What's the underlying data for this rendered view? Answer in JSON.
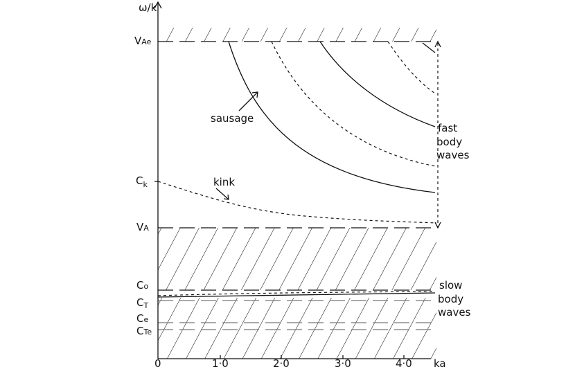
{
  "axes": {
    "y_label": "ω/k",
    "x_label": "ka",
    "x_ticks": [
      "0",
      "1·0",
      "2·0",
      "3·0",
      "4·0"
    ]
  },
  "levels": [
    {
      "symbol": "V",
      "subscript": "Ae"
    },
    {
      "symbol": "C",
      "subscript": "k"
    },
    {
      "symbol": "V",
      "subscript": "A"
    },
    {
      "symbol": "C",
      "subscript": "o"
    },
    {
      "symbol": "C",
      "subscript": "T"
    },
    {
      "symbol": "C",
      "subscript": "e"
    },
    {
      "symbol": "C",
      "subscript": "Te"
    }
  ],
  "annotations": {
    "sausage": "sausage",
    "kink": "kink",
    "fast": [
      "fast",
      "body",
      "waves"
    ],
    "slow": [
      "slow",
      "body",
      "waves"
    ]
  }
}
